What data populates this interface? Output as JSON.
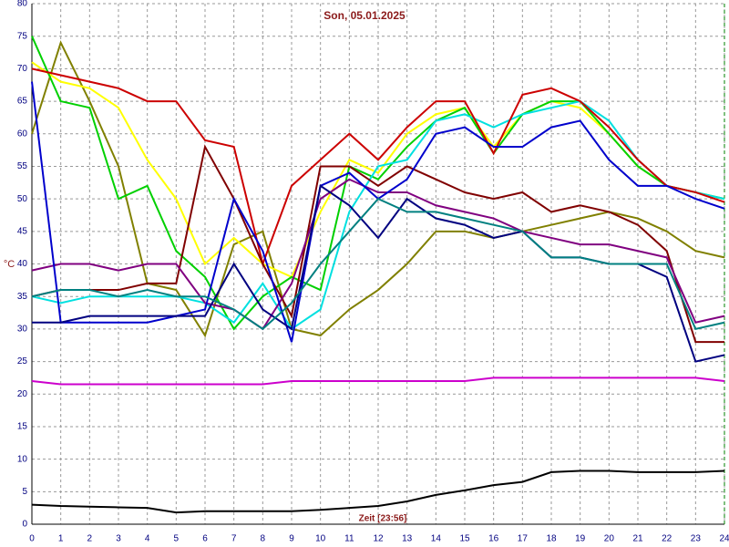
{
  "chart_data": {
    "type": "line",
    "title": "Son, 05.01.2025",
    "y_label": "°C",
    "x_label": "Zeit [23:56]",
    "x": [
      0,
      1,
      2,
      3,
      4,
      5,
      6,
      7,
      8,
      9,
      10,
      11,
      12,
      13,
      14,
      15,
      16,
      17,
      18,
      19,
      20,
      21,
      22,
      23,
      24
    ],
    "xlim": [
      0,
      24
    ],
    "xticks": [
      0,
      1,
      2,
      3,
      4,
      5,
      6,
      7,
      8,
      9,
      10,
      11,
      12,
      13,
      14,
      15,
      16,
      17,
      18,
      19,
      20,
      21,
      22,
      23,
      24
    ],
    "ylim": [
      0,
      80
    ],
    "yticks": [
      0,
      5,
      10,
      15,
      20,
      25,
      30,
      35,
      40,
      45,
      50,
      55,
      60,
      65,
      70,
      75,
      80
    ],
    "grid": true,
    "series": [
      {
        "color": "#808000",
        "values": [
          60,
          74,
          65,
          55,
          37,
          36,
          29,
          43,
          45,
          30,
          29,
          33,
          36,
          40,
          45,
          45,
          44,
          45,
          46,
          47,
          48,
          47,
          45,
          42,
          41
        ]
      },
      {
        "color": "#ffff00",
        "values": [
          71,
          68,
          67,
          64,
          56,
          50,
          40,
          44,
          40,
          38,
          48,
          56,
          54,
          60,
          63,
          64,
          58,
          63,
          65,
          64,
          60,
          55,
          52,
          51,
          50
        ]
      },
      {
        "color": "#00d000",
        "values": [
          75,
          65,
          64,
          50,
          52,
          42,
          38,
          30,
          35,
          38,
          36,
          55,
          53,
          58,
          62,
          64,
          57,
          63,
          65,
          65,
          60,
          55,
          52,
          51,
          50
        ]
      },
      {
        "color": "#00e0e0",
        "values": [
          35,
          34,
          35,
          35,
          35,
          35,
          34,
          31,
          37,
          30,
          33,
          48,
          55,
          56,
          62,
          63,
          61,
          63,
          64,
          65,
          62,
          56,
          52,
          51,
          50
        ]
      },
      {
        "color": "#cc0000",
        "values": [
          70,
          69,
          68,
          67,
          65,
          65,
          59,
          58,
          40,
          52,
          56,
          60,
          56,
          61,
          65,
          65,
          57,
          66,
          67,
          65,
          61,
          56,
          52,
          51,
          49.5
        ]
      },
      {
        "color": "#800000",
        "values": [
          35,
          36,
          36,
          36,
          37,
          37,
          58,
          50,
          40,
          32,
          55,
          55,
          52,
          55,
          53,
          51,
          50,
          51,
          48,
          49,
          48,
          46,
          42,
          28,
          28
        ]
      },
      {
        "color": "#800080",
        "values": [
          39,
          40,
          40,
          39,
          40,
          40,
          34,
          33,
          30,
          37,
          50,
          53,
          51,
          51,
          49,
          48,
          47,
          45,
          44,
          43,
          43,
          42,
          41,
          31,
          32
        ]
      },
      {
        "color": "#0000cc",
        "values": [
          68,
          31,
          31,
          31,
          31,
          32,
          33,
          50,
          42,
          28,
          52,
          54,
          50,
          53,
          60,
          61,
          58,
          58,
          61,
          62,
          56,
          52,
          52,
          50,
          48.5
        ]
      },
      {
        "color": "#000080",
        "values": [
          31,
          31,
          32,
          32,
          32,
          32,
          32,
          40,
          33,
          30,
          52,
          49,
          44,
          50,
          47,
          46,
          44,
          45,
          41,
          41,
          40,
          40,
          38,
          25,
          26
        ]
      },
      {
        "color": "#008080",
        "values": [
          35,
          36,
          36,
          35,
          36,
          35,
          35,
          33,
          30,
          34,
          40,
          45,
          50,
          48,
          48,
          47,
          46,
          45,
          41,
          41,
          40,
          40,
          40,
          30,
          31
        ]
      },
      {
        "color": "#cc00cc",
        "values": [
          22,
          21.5,
          21.5,
          21.5,
          21.5,
          21.5,
          21.5,
          21.5,
          21.5,
          22,
          22,
          22,
          22,
          22,
          22,
          22,
          22.5,
          22.5,
          22.5,
          22.5,
          22.5,
          22.5,
          22.5,
          22.5,
          22
        ]
      },
      {
        "color": "#000000",
        "values": [
          3,
          2.8,
          2.7,
          2.6,
          2.5,
          1.8,
          2,
          2,
          2,
          2,
          2.2,
          2.5,
          2.8,
          3.5,
          4.5,
          5.2,
          6,
          6.5,
          8,
          8.2,
          8.2,
          8,
          8,
          8,
          8.2
        ]
      }
    ]
  }
}
